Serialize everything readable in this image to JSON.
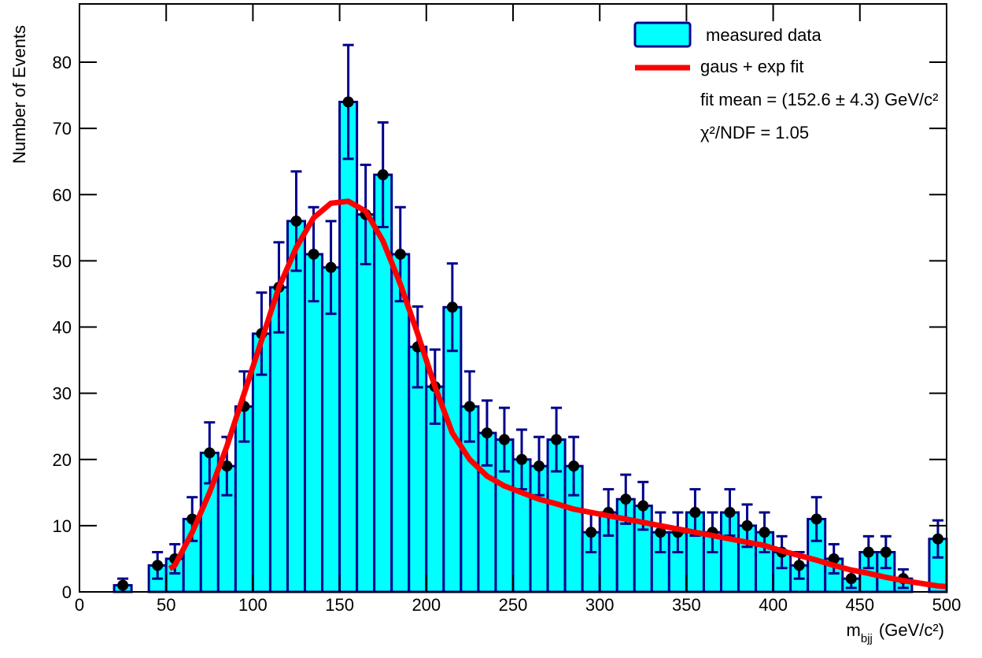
{
  "chart_data": {
    "type": "histogram",
    "ylabel": "Number of Events",
    "xlabel": {
      "main": "m",
      "sub": "bjj",
      "unit": "(GeV/c²)"
    },
    "bins": [
      0,
      10,
      20,
      30,
      40,
      50,
      60,
      70,
      80,
      90,
      100,
      110,
      120,
      130,
      140,
      150,
      160,
      170,
      180,
      190,
      200,
      210,
      220,
      230,
      240,
      250,
      260,
      270,
      280,
      290,
      300,
      310,
      320,
      330,
      340,
      350,
      360,
      370,
      380,
      390,
      400,
      410,
      420,
      430,
      440,
      450,
      460,
      470,
      480,
      490,
      500
    ],
    "name": "measured data",
    "color": "#00ffff",
    "edge_color": "#00008b",
    "values": [
      0,
      0,
      1,
      0,
      4,
      5,
      11,
      21,
      19,
      28,
      39,
      46,
      56,
      51,
      49,
      74,
      57,
      63,
      51,
      37,
      31,
      43,
      28,
      24,
      23,
      20,
      19,
      23,
      19,
      9,
      12,
      14,
      13,
      9,
      9,
      12,
      9,
      12,
      10,
      9,
      6,
      4,
      11,
      5,
      2,
      6,
      6,
      2,
      0,
      8
    ],
    "errors": [
      0,
      0,
      1,
      0,
      2,
      2.2,
      3.3,
      4.6,
      4.4,
      5.3,
      6.2,
      6.8,
      7.5,
      7.1,
      7,
      8.6,
      7.5,
      7.9,
      7.1,
      6.1,
      5.6,
      6.6,
      5.3,
      4.9,
      4.8,
      4.5,
      4.4,
      4.8,
      4.4,
      3,
      3.5,
      3.7,
      3.6,
      3,
      3,
      3.5,
      3,
      3.5,
      3.2,
      3,
      2.4,
      2,
      3.3,
      2.2,
      1.4,
      2.4,
      2.4,
      1.4,
      0,
      2.8
    ],
    "fit": {
      "name": "gaus + exp fit",
      "color": "#ff0000",
      "x": [
        52,
        55,
        65,
        75,
        85,
        95,
        105,
        115,
        125,
        135,
        145,
        155,
        165,
        175,
        185,
        195,
        205,
        215,
        225,
        235,
        245,
        255,
        265,
        275,
        285,
        295,
        305,
        315,
        325,
        335,
        345,
        355,
        365,
        375,
        385,
        395,
        405,
        415,
        425,
        435,
        445,
        455,
        465,
        475,
        485,
        495,
        500
      ],
      "values": [
        3.5,
        4,
        9,
        15,
        22,
        30,
        38,
        46,
        52,
        56.5,
        58.7,
        59,
        57.5,
        53,
        46.5,
        39,
        31,
        24,
        20,
        17.5,
        16,
        15,
        14,
        13.3,
        12.5,
        12,
        11.5,
        11,
        10.5,
        10,
        9.5,
        9,
        8.5,
        8,
        7.5,
        7,
        6.2,
        5.5,
        4.8,
        4,
        3.3,
        2.8,
        2.2,
        1.7,
        1.3,
        0.9,
        0.8
      ]
    },
    "annotations": [
      "fit mean = (152.6 ± 4.3) GeV/c²",
      "χ²/NDF = 1.05"
    ],
    "xlim": [
      0,
      500
    ],
    "ylim": [
      0,
      88.8
    ],
    "xticks": [
      0,
      50,
      100,
      150,
      200,
      250,
      300,
      350,
      400,
      450,
      500
    ],
    "yticks": [
      0,
      10,
      20,
      30,
      40,
      50,
      60,
      70,
      80
    ]
  }
}
